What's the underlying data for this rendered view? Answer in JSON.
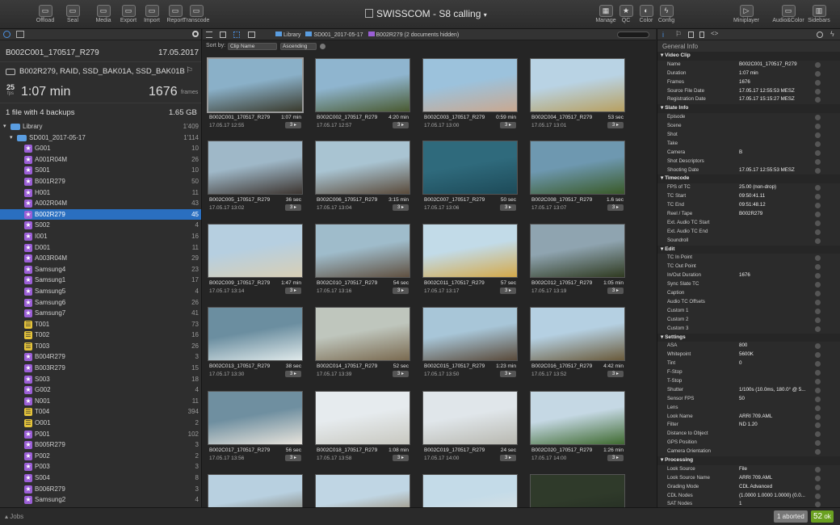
{
  "toolbar": {
    "left": [
      {
        "label": "Offload",
        "icon": "offload-icon"
      },
      {
        "label": "Seal",
        "icon": "seal-icon"
      },
      {
        "label": "Media",
        "icon": "media-icon"
      },
      {
        "label": "Export",
        "icon": "export-icon"
      },
      {
        "label": "Import",
        "icon": "import-icon"
      },
      {
        "label": "Report",
        "icon": "report-icon"
      },
      {
        "label": "Transcode",
        "icon": "transcode-icon"
      }
    ],
    "title": "SWISSCOM - S8 calling",
    "center": [
      {
        "label": "Manage"
      },
      {
        "label": "QC"
      },
      {
        "label": "Color"
      },
      {
        "label": "Config"
      }
    ],
    "right": [
      {
        "label": "Miniplayer"
      },
      {
        "label": "Audio&Color"
      },
      {
        "label": "Sidebars"
      }
    ]
  },
  "clip": {
    "name": "B002C001_170517_R279",
    "date": "17.05.2017",
    "backups_title": "B002R279, RAID, SSD_BAK01A, SSD_BAK01B",
    "fps": "25",
    "fps_unit": "fps",
    "duration": "1:07 min",
    "frames": "1676",
    "frames_unit": "frames",
    "files": "1 file with 4 backups",
    "size": "1.65 GB"
  },
  "tree": [
    {
      "label": "Library",
      "count": "1'409",
      "type": "folder",
      "level": 0
    },
    {
      "label": "SD001_2017-05-17",
      "count": "1'114",
      "type": "folder",
      "level": 1
    },
    {
      "label": "G001",
      "count": "10",
      "type": "p"
    },
    {
      "label": "A001R04M",
      "count": "26",
      "type": "p"
    },
    {
      "label": "S001",
      "count": "10",
      "type": "p"
    },
    {
      "label": "B001R279",
      "count": "50",
      "type": "p"
    },
    {
      "label": "H001",
      "count": "11",
      "type": "p"
    },
    {
      "label": "A002R04M",
      "count": "43",
      "type": "p"
    },
    {
      "label": "B002R279",
      "count": "45",
      "type": "p",
      "sel": true
    },
    {
      "label": "S002",
      "count": "4",
      "type": "p"
    },
    {
      "label": "I001",
      "count": "16",
      "type": "p"
    },
    {
      "label": "D001",
      "count": "11",
      "type": "p"
    },
    {
      "label": "A003R04M",
      "count": "29",
      "type": "p"
    },
    {
      "label": "Samsung4",
      "count": "23",
      "type": "p"
    },
    {
      "label": "Samsung1",
      "count": "17",
      "type": "p"
    },
    {
      "label": "Samsung5",
      "count": "4",
      "type": "p"
    },
    {
      "label": "Samsung6",
      "count": "26",
      "type": "p"
    },
    {
      "label": "Samsung7",
      "count": "41",
      "type": "p"
    },
    {
      "label": "T001",
      "count": "73",
      "type": "y"
    },
    {
      "label": "T002",
      "count": "16",
      "type": "y"
    },
    {
      "label": "T003",
      "count": "26",
      "type": "y"
    },
    {
      "label": "B004R279",
      "count": "3",
      "type": "p"
    },
    {
      "label": "B003R279",
      "count": "15",
      "type": "p"
    },
    {
      "label": "S003",
      "count": "18",
      "type": "p"
    },
    {
      "label": "G002",
      "count": "4",
      "type": "p"
    },
    {
      "label": "N001",
      "count": "11",
      "type": "p"
    },
    {
      "label": "T004",
      "count": "394",
      "type": "y"
    },
    {
      "label": "O001",
      "count": "2",
      "type": "y"
    },
    {
      "label": "P001",
      "count": "102",
      "type": "p"
    },
    {
      "label": "B005R279",
      "count": "3",
      "type": "p"
    },
    {
      "label": "P002",
      "count": "2",
      "type": "p"
    },
    {
      "label": "P003",
      "count": "3",
      "type": "p"
    },
    {
      "label": "S004",
      "count": "8",
      "type": "p"
    },
    {
      "label": "B006R279",
      "count": "3",
      "type": "p"
    },
    {
      "label": "Samsung2",
      "count": "4",
      "type": "p"
    }
  ],
  "browser": {
    "crumbs": [
      "Library",
      "SD001_2017-05-17",
      "B002R279 (2 documents hidden)"
    ],
    "sort_label": "Sort by:",
    "sort_field": "Clip Name",
    "sort_order": "Ascending"
  },
  "clips": [
    {
      "name": "B002C001_170517_R279",
      "dur": "1:07 min",
      "date": "17.05.17 12:55",
      "b": "3"
    },
    {
      "name": "B002C002_170517_R279",
      "dur": "4:20 min",
      "date": "17.05.17 12:57",
      "b": "3"
    },
    {
      "name": "B002C003_170517_R279",
      "dur": "0:59 min",
      "date": "17.05.17 13:00",
      "b": "3"
    },
    {
      "name": "B002C004_170517_R279",
      "dur": "53 sec",
      "date": "17.05.17 13:01",
      "b": "3"
    },
    {
      "name": "B002C005_170517_R279",
      "dur": "36 sec",
      "date": "17.05.17 13:02",
      "b": "3"
    },
    {
      "name": "B002C006_170517_R279",
      "dur": "3:15 min",
      "date": "17.05.17 13:04",
      "b": "3"
    },
    {
      "name": "B002C007_170517_R279",
      "dur": "50 sec",
      "date": "17.05.17 13:06",
      "b": "3"
    },
    {
      "name": "B002C008_170517_R279",
      "dur": "1.6 sec",
      "date": "17.05.17 13:07",
      "b": "3"
    },
    {
      "name": "B002C009_170517_R279",
      "dur": "1:47 min",
      "date": "17.05.17 13:14",
      "b": "3"
    },
    {
      "name": "B002C010_170517_R279",
      "dur": "54 sec",
      "date": "17.05.17 13:16",
      "b": "3"
    },
    {
      "name": "B002C011_170517_R279",
      "dur": "57 sec",
      "date": "17.05.17 13:17",
      "b": "3"
    },
    {
      "name": "B002C012_170517_R279",
      "dur": "1:05 min",
      "date": "17.05.17 13:19",
      "b": "3"
    },
    {
      "name": "B002C013_170517_R279",
      "dur": "38 sec",
      "date": "17.05.17 13:30",
      "b": "3"
    },
    {
      "name": "B002C014_170517_R279",
      "dur": "52 sec",
      "date": "17.05.17 13:39",
      "b": "3"
    },
    {
      "name": "B002C015_170517_R279",
      "dur": "1:23 min",
      "date": "17.05.17 13:50",
      "b": "3"
    },
    {
      "name": "B002C016_170517_R279",
      "dur": "4:42 min",
      "date": "17.05.17 13:52",
      "b": "3"
    },
    {
      "name": "B002C017_170517_R279",
      "dur": "56 sec",
      "date": "17.05.17 13:56",
      "b": "3"
    },
    {
      "name": "B002C018_170517_R279",
      "dur": "1:08 min",
      "date": "17.05.17 13:58",
      "b": "3"
    },
    {
      "name": "B002C019_170517_R279",
      "dur": "24 sec",
      "date": "17.05.17 14:00",
      "b": "3"
    },
    {
      "name": "B002C020_170517_R279",
      "dur": "1:26 min",
      "date": "17.05.17 14:00",
      "b": "3"
    },
    {
      "name": "",
      "dur": "",
      "date": "",
      "b": ""
    },
    {
      "name": "",
      "dur": "",
      "date": "",
      "b": ""
    },
    {
      "name": "",
      "dur": "",
      "date": "",
      "b": ""
    },
    {
      "name": "",
      "dur": "",
      "date": "",
      "b": ""
    }
  ],
  "thumb_colors": [
    [
      "#8ab0c8",
      "#3a3a2c"
    ],
    [
      "#8fb5cf",
      "#4a5a30"
    ],
    [
      "#9cc2dc",
      "#c9a890"
    ],
    [
      "#b9d3e4",
      "#b8a060"
    ],
    [
      "#9fb8c8",
      "#3d3530"
    ],
    [
      "#a9c4d2",
      "#5a4a3a"
    ],
    [
      "#2f6a7c",
      "#1d4a58"
    ],
    [
      "#6e98b0",
      "#3a5a28"
    ],
    [
      "#b6cfe0",
      "#d8cfb5"
    ],
    [
      "#9fbccb",
      "#605040"
    ],
    [
      "#c2dbe8",
      "#d4a94a"
    ],
    [
      "#8fa4b0",
      "#2f3a20"
    ],
    [
      "#6b8ea0",
      "#dfe9ea"
    ],
    [
      "#bfc6bd",
      "#7a6a50"
    ],
    [
      "#a8c6d8",
      "#5a4a3a"
    ],
    [
      "#b5d0e2",
      "#6a5a3a"
    ],
    [
      "#6f8fa0",
      "#e8e4dc"
    ],
    [
      "#e6ebee",
      "#c8c8c0"
    ],
    [
      "#e0e6ea",
      "#b8b8b0"
    ],
    [
      "#c5d8e4",
      "#3f6a30"
    ],
    [
      "#b8d0e0",
      "#6a5a40"
    ],
    [
      "#c0d6e4",
      "#8a6a40"
    ],
    [
      "#c4dbe8",
      "#e4e4e0"
    ],
    [
      "#2f3a2a",
      "#202820"
    ]
  ],
  "inspector": {
    "title": "General Info",
    "sections": [
      {
        "name": "Video Clip",
        "props": [
          [
            "Name",
            "B002C001_170517_R279"
          ],
          [
            "Duration",
            "1:07 min"
          ],
          [
            "Frames",
            "1676"
          ],
          [
            "Source File Date",
            "17.05.17 12:55:53 MESZ"
          ],
          [
            "Registration Date",
            "17.05.17 15:15:27 MESZ"
          ]
        ]
      },
      {
        "name": "Slate Info",
        "props": [
          [
            "Episode",
            ""
          ],
          [
            "Scene",
            ""
          ],
          [
            "Shot",
            ""
          ],
          [
            "Take",
            ""
          ],
          [
            "Camera",
            "B"
          ],
          [
            "Shot Descriptors",
            ""
          ],
          [
            "Shooting Date",
            "17.05.17 12:55:53 MESZ"
          ]
        ]
      },
      {
        "name": "Timecode",
        "props": [
          [
            "FPS of TC",
            "25.00 (non-drop)"
          ],
          [
            "TC Start",
            "09:50:41.11"
          ],
          [
            "TC End",
            "09:51:48.12"
          ],
          [
            "Reel / Tape",
            "B002R279"
          ],
          [
            "Ext. Audio TC Start",
            ""
          ],
          [
            "Ext. Audio TC End",
            ""
          ],
          [
            "Soundroll",
            ""
          ]
        ]
      },
      {
        "name": "Edit",
        "props": [
          [
            "TC In Point",
            ""
          ],
          [
            "TC Out Point",
            ""
          ],
          [
            "In/Out Duration",
            "1676"
          ],
          [
            "Sync Slate TC",
            ""
          ],
          [
            "Caption",
            ""
          ],
          [
            "Audio TC Offsets",
            ""
          ],
          [
            "Custom 1",
            ""
          ],
          [
            "Custom 2",
            ""
          ],
          [
            "Custom 3",
            ""
          ]
        ]
      },
      {
        "name": "Settings",
        "props": [
          [
            "ASA",
            "800"
          ],
          [
            "Whitepoint",
            "5600K"
          ],
          [
            "Tint",
            "0"
          ],
          [
            "F-Stop",
            ""
          ],
          [
            "T-Stop",
            ""
          ],
          [
            "Shutter",
            "1/100s (10.0ms, 180.0° @ 5..."
          ],
          [
            "Sensor FPS",
            "50"
          ],
          [
            "Lens",
            ""
          ],
          [
            "Look Name",
            "ARRI 709.AML"
          ],
          [
            "Filter",
            "ND 1.20"
          ],
          [
            "Distance to Object",
            ""
          ],
          [
            "GPS Position",
            ""
          ],
          [
            "Camera Orientation",
            ""
          ]
        ]
      },
      {
        "name": "Processing",
        "props": [
          [
            "Look Source",
            "File"
          ],
          [
            "Look Source Name",
            "ARRI 709.AML"
          ],
          [
            "Grading Mode",
            "CDL Advanced"
          ],
          [
            "CDL Nodes",
            "(1.0000 1.0000 1.0000) (0.0..."
          ],
          [
            "SAT Nodes",
            "1"
          ]
        ]
      }
    ]
  },
  "status": {
    "jobs": "Jobs",
    "aborted": "1 aborted",
    "ok_count": "52",
    "ok_label": "ok"
  }
}
